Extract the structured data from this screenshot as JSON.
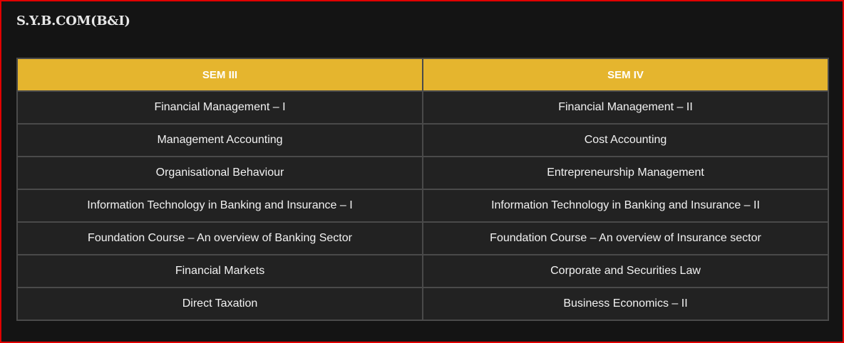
{
  "page": {
    "title": "S.Y.B.COM(B&I)"
  },
  "table": {
    "headers": [
      "SEM III",
      "SEM IV"
    ],
    "rows": [
      [
        "Financial Management – I",
        "Financial Management – II"
      ],
      [
        "Management Accounting",
        "Cost Accounting"
      ],
      [
        "Organisational Behaviour",
        "Entrepreneurship Management"
      ],
      [
        "Information Technology in Banking and Insurance – I",
        "Information Technology in Banking and Insurance – II"
      ],
      [
        "Foundation Course – An overview of Banking Sector",
        "Foundation Course – An overview of Insurance sector"
      ],
      [
        "Financial Markets",
        "Corporate and Securities Law"
      ],
      [
        "Direct Taxation",
        "Business Economics – II"
      ]
    ]
  },
  "colors": {
    "header_background": "#e5b52e",
    "cell_background": "#222222",
    "page_background": "#141414",
    "frame_border": "#e00000"
  }
}
